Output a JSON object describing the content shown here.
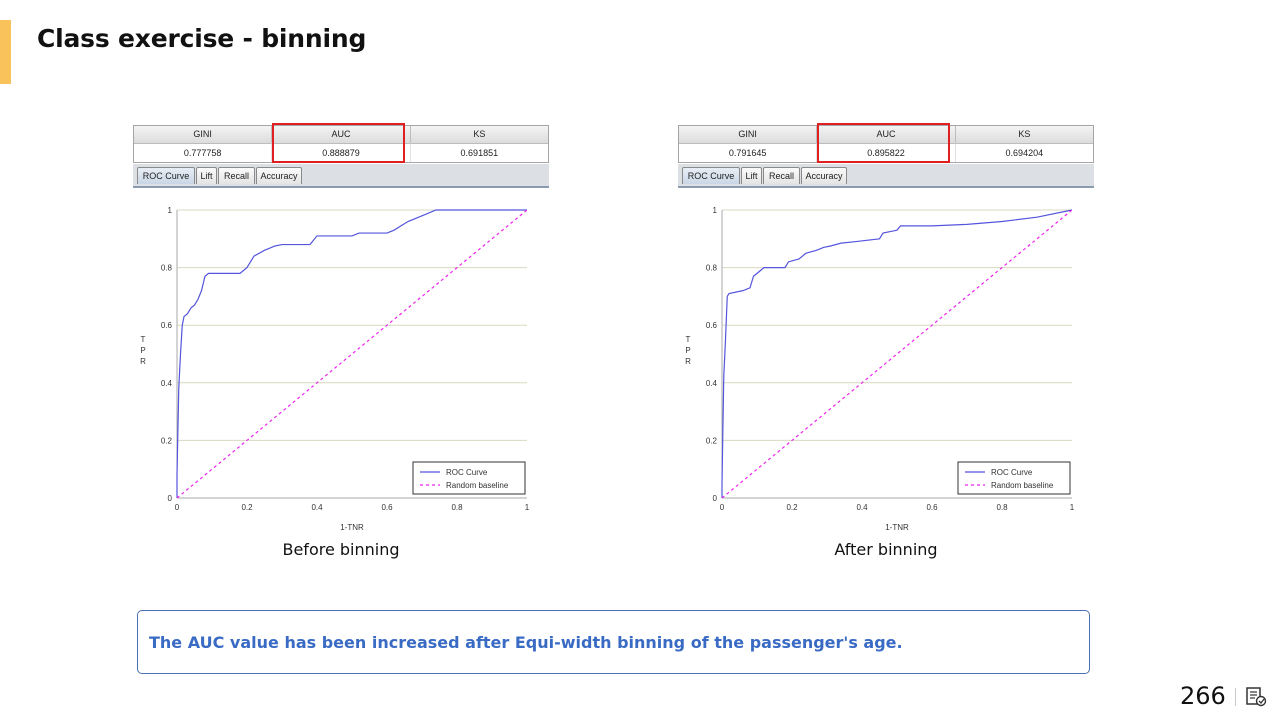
{
  "slide": {
    "title": "Class exercise - binning",
    "note": "The AUC value has been increased after Equi-width binning of the passenger's age.",
    "page_number": "266",
    "accent_color": "#f9c25b",
    "highlight_color": "#e02020",
    "note_color": "#3a6bc4"
  },
  "panels": [
    {
      "metrics": {
        "headers": [
          "GINI",
          "AUC",
          "KS"
        ],
        "values": [
          "0.777758",
          "0.888879",
          "0.691851"
        ]
      },
      "tabs": [
        "ROC Curve",
        "Lift",
        "Recall",
        "Accuracy"
      ],
      "caption": "Before binning"
    },
    {
      "metrics": {
        "headers": [
          "GINI",
          "AUC",
          "KS"
        ],
        "values": [
          "0.791645",
          "0.895822",
          "0.694204"
        ]
      },
      "tabs": [
        "ROC Curve",
        "Lift",
        "Recall",
        "Accuracy"
      ],
      "caption": "After binning"
    }
  ],
  "chart_data": [
    {
      "type": "line",
      "title": "",
      "xlabel": "1-TNR",
      "ylabel": "TPR",
      "xlim": [
        0,
        1
      ],
      "ylim": [
        0,
        1
      ],
      "xticks": [
        "0",
        "0.2",
        "0.4",
        "0.6",
        "0.8",
        "1"
      ],
      "yticks": [
        "0",
        "0.2",
        "0.4",
        "0.6",
        "0.8",
        "1"
      ],
      "grid": "horizontal",
      "legend": "bottom-right",
      "series": [
        {
          "name": "ROC Curve",
          "color": "#5555dd",
          "dash": "solid",
          "points": [
            [
              0,
              0
            ],
            [
              0,
              0.08
            ],
            [
              0.005,
              0.38
            ],
            [
              0.01,
              0.5
            ],
            [
              0.015,
              0.6
            ],
            [
              0.02,
              0.63
            ],
            [
              0.03,
              0.64
            ],
            [
              0.04,
              0.66
            ],
            [
              0.05,
              0.67
            ],
            [
              0.06,
              0.69
            ],
            [
              0.07,
              0.72
            ],
            [
              0.08,
              0.77
            ],
            [
              0.09,
              0.78
            ],
            [
              0.18,
              0.78
            ],
            [
              0.2,
              0.8
            ],
            [
              0.22,
              0.84
            ],
            [
              0.25,
              0.86
            ],
            [
              0.28,
              0.875
            ],
            [
              0.3,
              0.88
            ],
            [
              0.38,
              0.88
            ],
            [
              0.4,
              0.91
            ],
            [
              0.5,
              0.91
            ],
            [
              0.52,
              0.92
            ],
            [
              0.6,
              0.92
            ],
            [
              0.62,
              0.93
            ],
            [
              0.66,
              0.96
            ],
            [
              0.7,
              0.98
            ],
            [
              0.74,
              1
            ],
            [
              1,
              1
            ]
          ]
        },
        {
          "name": "Random baseline",
          "color": "#ee22ee",
          "dash": "dashed",
          "points": [
            [
              0,
              0
            ],
            [
              1,
              1
            ]
          ]
        }
      ]
    },
    {
      "type": "line",
      "title": "",
      "xlabel": "1-TNR",
      "ylabel": "TPR",
      "xlim": [
        0,
        1
      ],
      "ylim": [
        0,
        1
      ],
      "xticks": [
        "0",
        "0.2",
        "0.4",
        "0.6",
        "0.8",
        "1"
      ],
      "yticks": [
        "0",
        "0.2",
        "0.4",
        "0.6",
        "0.8",
        "1"
      ],
      "grid": "horizontal",
      "legend": "bottom-right",
      "series": [
        {
          "name": "ROC Curve",
          "color": "#5555dd",
          "dash": "solid",
          "points": [
            [
              0,
              0
            ],
            [
              0,
              0.05
            ],
            [
              0.005,
              0.42
            ],
            [
              0.01,
              0.55
            ],
            [
              0.015,
              0.7
            ],
            [
              0.02,
              0.71
            ],
            [
              0.06,
              0.72
            ],
            [
              0.08,
              0.73
            ],
            [
              0.09,
              0.77
            ],
            [
              0.11,
              0.79
            ],
            [
              0.12,
              0.8
            ],
            [
              0.18,
              0.8
            ],
            [
              0.19,
              0.82
            ],
            [
              0.22,
              0.83
            ],
            [
              0.24,
              0.85
            ],
            [
              0.27,
              0.86
            ],
            [
              0.29,
              0.87
            ],
            [
              0.31,
              0.875
            ],
            [
              0.34,
              0.885
            ],
            [
              0.38,
              0.89
            ],
            [
              0.45,
              0.9
            ],
            [
              0.46,
              0.92
            ],
            [
              0.5,
              0.93
            ],
            [
              0.51,
              0.945
            ],
            [
              0.6,
              0.945
            ],
            [
              0.7,
              0.95
            ],
            [
              0.8,
              0.96
            ],
            [
              0.9,
              0.975
            ],
            [
              1,
              1
            ]
          ]
        },
        {
          "name": "Random baseline",
          "color": "#ee22ee",
          "dash": "dashed",
          "points": [
            [
              0,
              0
            ],
            [
              1,
              1
            ]
          ]
        }
      ]
    }
  ]
}
